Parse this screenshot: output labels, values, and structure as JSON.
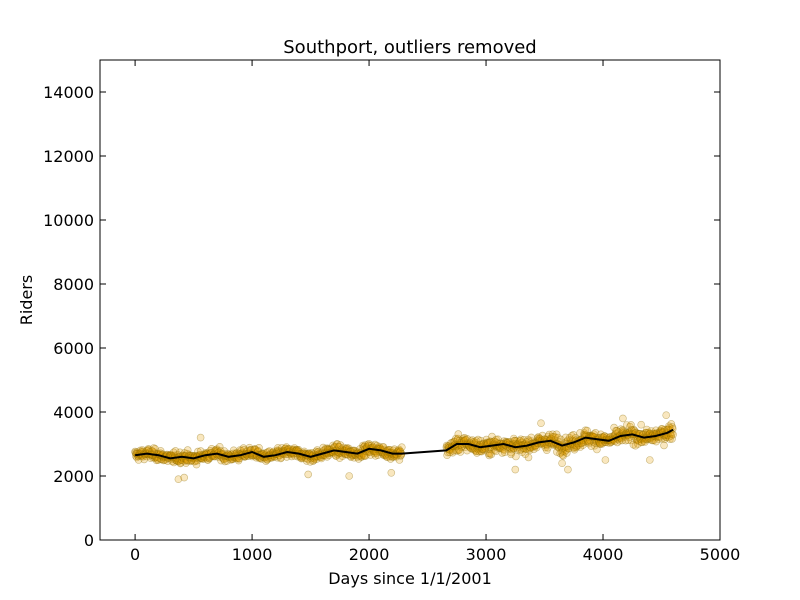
{
  "chart_data": {
    "type": "scatter",
    "title": "Southport, outliers removed",
    "xlabel": "Days since 1/1/2001",
    "ylabel": "Riders",
    "xlim": [
      -300,
      5000
    ],
    "ylim": [
      0,
      15000
    ],
    "xticks": [
      0,
      1000,
      2000,
      3000,
      4000,
      5000
    ],
    "yticks": [
      0,
      2000,
      4000,
      6000,
      8000,
      10000,
      12000,
      14000
    ],
    "xtick_labels": [
      "0",
      "1000",
      "2000",
      "3000",
      "4000",
      "5000"
    ],
    "ytick_labels": [
      "0",
      "2000",
      "4000",
      "6000",
      "8000",
      "10000",
      "12000",
      "14000"
    ],
    "grid": false,
    "colors": {
      "points": "#e69f00",
      "trend": "#000000"
    },
    "series": [
      {
        "kind": "scatter",
        "x_range": [
          0,
          4600
        ],
        "gap": [
          2280,
          2660
        ],
        "trend_points": [
          [
            0,
            2650
          ],
          [
            100,
            2700
          ],
          [
            200,
            2650
          ],
          [
            300,
            2550
          ],
          [
            400,
            2600
          ],
          [
            500,
            2550
          ],
          [
            600,
            2650
          ],
          [
            700,
            2700
          ],
          [
            800,
            2600
          ],
          [
            900,
            2650
          ],
          [
            1000,
            2750
          ],
          [
            1100,
            2600
          ],
          [
            1200,
            2650
          ],
          [
            1300,
            2750
          ],
          [
            1400,
            2700
          ],
          [
            1500,
            2600
          ],
          [
            1600,
            2700
          ],
          [
            1700,
            2800
          ],
          [
            1800,
            2750
          ],
          [
            1900,
            2700
          ],
          [
            2000,
            2850
          ],
          [
            2100,
            2800
          ],
          [
            2200,
            2700
          ],
          [
            2280,
            2700
          ],
          [
            2660,
            2800
          ],
          [
            2750,
            3000
          ],
          [
            2850,
            3000
          ],
          [
            2950,
            2900
          ],
          [
            3050,
            2950
          ],
          [
            3150,
            3000
          ],
          [
            3250,
            2900
          ],
          [
            3350,
            2950
          ],
          [
            3450,
            3050
          ],
          [
            3550,
            3100
          ],
          [
            3650,
            2950
          ],
          [
            3750,
            3050
          ],
          [
            3850,
            3200
          ],
          [
            3950,
            3150
          ],
          [
            4050,
            3100
          ],
          [
            4150,
            3250
          ],
          [
            4250,
            3300
          ],
          [
            4350,
            3200
          ],
          [
            4450,
            3250
          ],
          [
            4550,
            3350
          ],
          [
            4600,
            3450
          ]
        ],
        "outlier_points": [
          [
            370,
            1900
          ],
          [
            420,
            1950
          ],
          [
            1480,
            2050
          ],
          [
            1830,
            2000
          ],
          [
            2190,
            2100
          ],
          [
            560,
            3200
          ],
          [
            3470,
            3650
          ],
          [
            3650,
            2400
          ],
          [
            3700,
            2200
          ],
          [
            4020,
            2500
          ],
          [
            4400,
            2500
          ],
          [
            4170,
            3800
          ],
          [
            4540,
            3900
          ],
          [
            3250,
            2200
          ]
        ]
      },
      {
        "kind": "line",
        "points": [
          [
            0,
            2650
          ],
          [
            100,
            2700
          ],
          [
            200,
            2650
          ],
          [
            300,
            2550
          ],
          [
            400,
            2600
          ],
          [
            500,
            2550
          ],
          [
            600,
            2650
          ],
          [
            700,
            2700
          ],
          [
            800,
            2600
          ],
          [
            900,
            2650
          ],
          [
            1000,
            2750
          ],
          [
            1100,
            2600
          ],
          [
            1200,
            2650
          ],
          [
            1300,
            2750
          ],
          [
            1400,
            2700
          ],
          [
            1500,
            2600
          ],
          [
            1600,
            2700
          ],
          [
            1700,
            2800
          ],
          [
            1800,
            2750
          ],
          [
            1900,
            2700
          ],
          [
            2000,
            2850
          ],
          [
            2100,
            2800
          ],
          [
            2200,
            2700
          ],
          [
            2280,
            2700
          ],
          [
            2660,
            2800
          ],
          [
            2750,
            3000
          ],
          [
            2850,
            3000
          ],
          [
            2950,
            2900
          ],
          [
            3050,
            2950
          ],
          [
            3150,
            3000
          ],
          [
            3250,
            2900
          ],
          [
            3350,
            2950
          ],
          [
            3450,
            3050
          ],
          [
            3550,
            3100
          ],
          [
            3650,
            2950
          ],
          [
            3750,
            3050
          ],
          [
            3850,
            3200
          ],
          [
            3950,
            3150
          ],
          [
            4050,
            3100
          ],
          [
            4150,
            3250
          ],
          [
            4250,
            3300
          ],
          [
            4350,
            3200
          ],
          [
            4450,
            3250
          ],
          [
            4550,
            3350
          ],
          [
            4600,
            3450
          ]
        ]
      }
    ]
  }
}
